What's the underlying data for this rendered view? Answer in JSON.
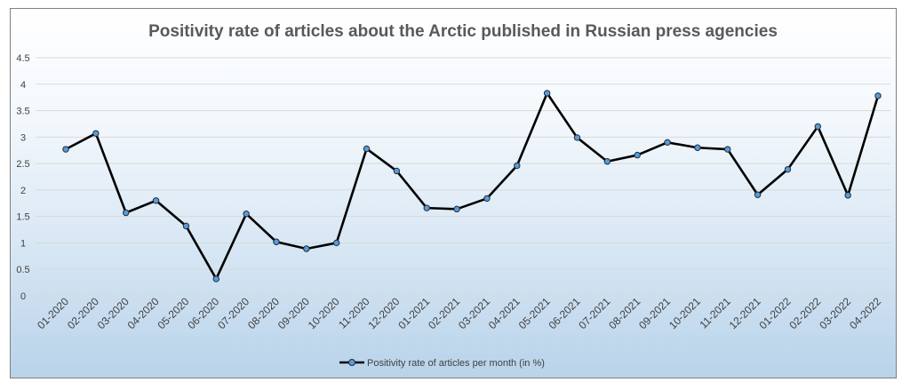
{
  "chart_data": {
    "type": "line",
    "title": "Positivity rate of articles about the Arctic published in Russian press agencies",
    "xlabel": "",
    "ylabel": "",
    "ylim": [
      0,
      4.5
    ],
    "yticks": [
      "0",
      "0.5",
      "1",
      "1.5",
      "2",
      "2.5",
      "3",
      "3.5",
      "4",
      "4.5"
    ],
    "grid": true,
    "legend_position": "bottom",
    "categories": [
      "01-2020",
      "02-2020",
      "03-2020",
      "04-2020",
      "05-2020",
      "06-2020",
      "07-2020",
      "08-2020",
      "09-2020",
      "10-2020",
      "11-2020",
      "12-2020",
      "01-2021",
      "02-2021",
      "03-2021",
      "04-2021",
      "05-2021",
      "06-2021",
      "07-2021",
      "08-2021",
      "09-2021",
      "10-2021",
      "11-2021",
      "12-2021",
      "01-2022",
      "02-2022",
      "03-2022",
      "04-2022"
    ],
    "series": [
      {
        "name": "Positivity rate of articles per month (in %)",
        "color": "#000000",
        "marker_color": "#5b9bd5",
        "values": [
          2.77,
          3.07,
          1.57,
          1.8,
          1.32,
          0.32,
          1.55,
          1.02,
          0.89,
          1.0,
          2.78,
          2.36,
          1.66,
          1.64,
          1.84,
          2.46,
          3.83,
          2.99,
          2.54,
          2.66,
          2.9,
          2.8,
          2.77,
          1.91,
          2.39,
          3.2,
          1.9,
          3.78
        ]
      }
    ]
  }
}
